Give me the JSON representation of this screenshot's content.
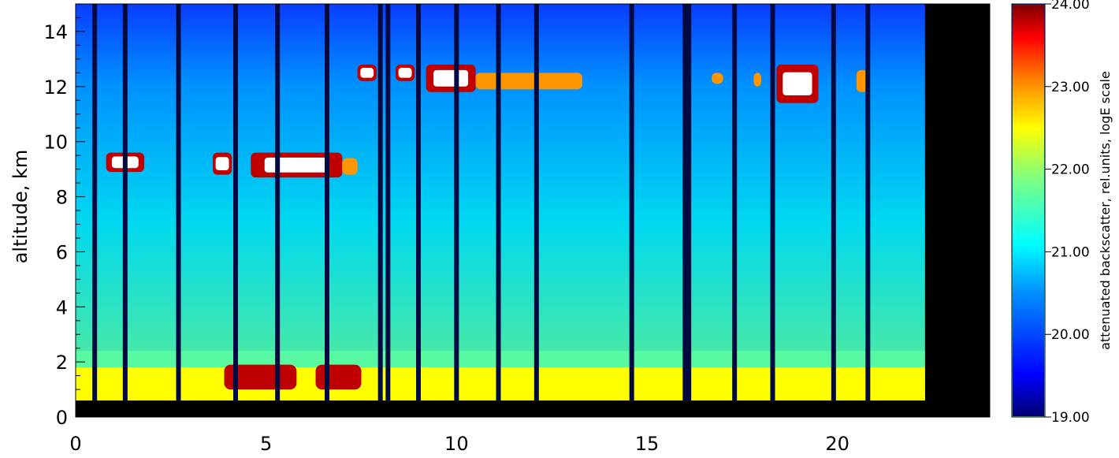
{
  "chart_data": {
    "type": "heatmap",
    "title": "",
    "xlabel": "",
    "ylabel": "altitude, km",
    "xlim": [
      0,
      24
    ],
    "ylim": [
      0,
      15
    ],
    "x_ticks": [
      0,
      5,
      10,
      15,
      20
    ],
    "x_tick_labels": [
      "0",
      "5",
      "10",
      "15",
      "20"
    ],
    "y_ticks": [
      0,
      2,
      4,
      6,
      8,
      10,
      12,
      14
    ],
    "y_tick_labels": [
      "0",
      "2",
      "4",
      "6",
      "8",
      "10",
      "12",
      "14"
    ],
    "colorbar": {
      "label": "attenuated backscatter, rel.units, logE scale",
      "range": [
        19,
        24
      ],
      "ticks": [
        19,
        20,
        21,
        22,
        23,
        24
      ],
      "tick_labels": [
        "19.00",
        "20.00",
        "21.00",
        "22.00",
        "23.00",
        "24.00"
      ],
      "colormap": "rainbow (dark blue to dark red)"
    },
    "data_end_time": 22.3,
    "ground_blind_zone_top_km": 0.6,
    "boundary_layer": {
      "top_km": 1.8,
      "value": 22.5
    },
    "aerosol_layer_enhanced": [
      {
        "time_start": 3.9,
        "time_end": 5.8,
        "alt_low": 1.0,
        "alt_high": 1.9,
        "value": 23.8
      },
      {
        "time_start": 6.3,
        "time_end": 7.5,
        "alt_low": 1.0,
        "alt_high": 1.9,
        "value": 23.8
      }
    ],
    "cloud_layers": [
      {
        "time_start": 0.8,
        "time_end": 1.8,
        "alt_low": 8.9,
        "alt_high": 9.6,
        "value": 24
      },
      {
        "time_start": 3.6,
        "time_end": 4.1,
        "alt_low": 8.8,
        "alt_high": 9.6,
        "value": 24
      },
      {
        "time_start": 4.6,
        "time_end": 7.0,
        "alt_low": 8.7,
        "alt_high": 9.6,
        "value": 24
      },
      {
        "time_start": 7.0,
        "time_end": 7.4,
        "alt_low": 8.8,
        "alt_high": 9.4,
        "value": 23
      },
      {
        "time_start": 7.4,
        "time_end": 7.9,
        "alt_low": 12.2,
        "alt_high": 12.8,
        "value": 24
      },
      {
        "time_start": 8.4,
        "time_end": 8.9,
        "alt_low": 12.2,
        "alt_high": 12.8,
        "value": 24
      },
      {
        "time_start": 9.2,
        "time_end": 10.5,
        "alt_low": 11.8,
        "alt_high": 12.8,
        "value": 24
      },
      {
        "time_start": 10.5,
        "time_end": 13.3,
        "alt_low": 11.9,
        "alt_high": 12.5,
        "value": 23
      },
      {
        "time_start": 16.7,
        "time_end": 17.0,
        "alt_low": 12.1,
        "alt_high": 12.5,
        "value": 23
      },
      {
        "time_start": 17.8,
        "time_end": 18.0,
        "alt_low": 12.0,
        "alt_high": 12.5,
        "value": 23
      },
      {
        "time_start": 18.4,
        "time_end": 19.5,
        "alt_low": 11.4,
        "alt_high": 12.8,
        "value": 24
      },
      {
        "time_start": 20.5,
        "time_end": 20.8,
        "alt_low": 11.8,
        "alt_high": 12.6,
        "value": 23
      }
    ],
    "dark_gaps_hours": [
      0.5,
      1.3,
      2.7,
      4.2,
      5.3,
      6.6,
      8.0,
      8.2,
      9.0,
      10.0,
      11.1,
      12.1,
      14.6,
      16.0,
      16.1,
      17.3,
      18.3,
      19.9,
      20.8
    ],
    "grid": false,
    "legend": "colorbar-right"
  }
}
